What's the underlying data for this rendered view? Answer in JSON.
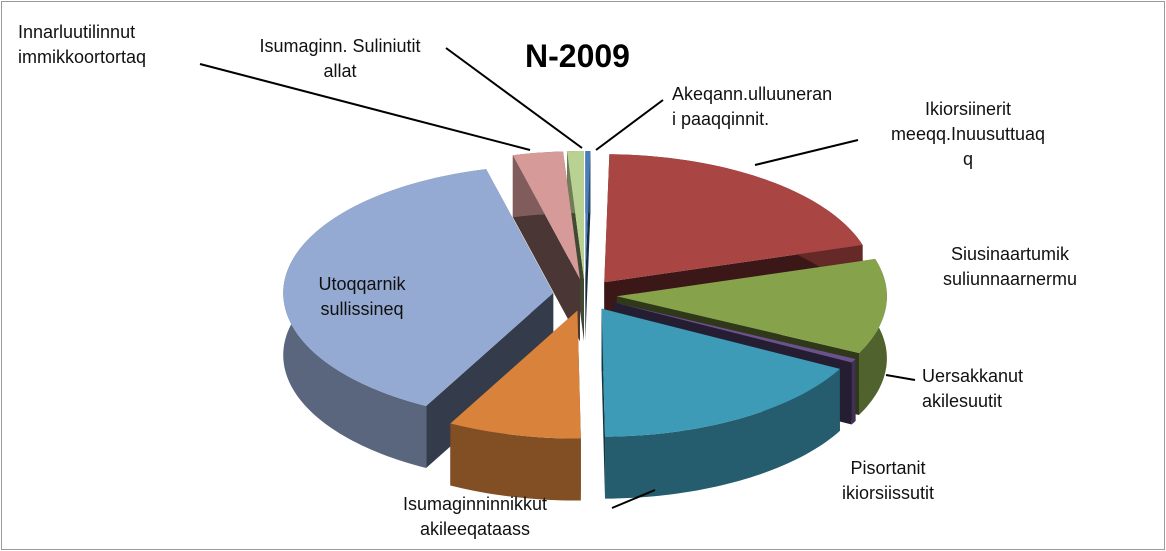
{
  "chart_data": {
    "type": "pie3d",
    "title": "N-2009",
    "categories": [
      "Akeqann.ulluuneran\ni paaqqinnit.",
      "Ikiorsiinerit\nmeeqq.Inuusuttuaq\nq",
      "Siusinaartumik\nsuliunnaarnermu",
      "Uersakkanut\nakilesuutit",
      "Pisortanit\nikiorsiissutit",
      "Isumaginninnikkut\nakileeqataass",
      "Utoqqarnik\nsullissineq",
      "Innarluutilinnut\nimmikkoortortaq",
      "Isumaginn. Suliniutit\nallat"
    ],
    "values": [
      0.3,
      20,
      12,
      0.5,
      17,
      8,
      38.2,
      3,
      1
    ],
    "colors": [
      "#4a7ebb",
      "#a94543",
      "#86a34b",
      "#6b528c",
      "#3d9bb7",
      "#d9823b",
      "#95aad2",
      "#d69b99",
      "#b9d192"
    ]
  }
}
